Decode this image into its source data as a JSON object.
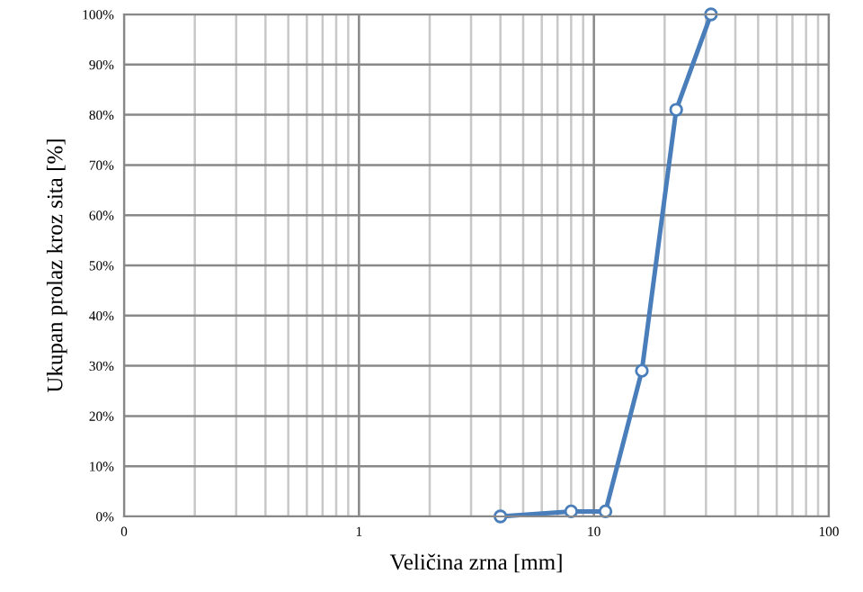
{
  "chart_data": {
    "type": "line",
    "xlabel": "Veličina zrna [mm]",
    "ylabel": "Ukupan prolaz kroz sita [%]",
    "x": [
      4,
      8,
      11.2,
      16,
      22.4,
      31.5
    ],
    "series": [
      {
        "color": "#4a7ebb",
        "values": [
          0,
          1,
          1,
          29,
          81,
          100
        ]
      }
    ],
    "log": "x",
    "xlim": [
      0.1,
      100
    ],
    "xticks": [
      {
        "value": 0.1,
        "label": "0"
      },
      1,
      10,
      100
    ],
    "ylim": [
      0,
      100
    ],
    "yticks": [
      {
        "value": 0,
        "label": "0%"
      },
      {
        "value": 10,
        "label": "10%"
      },
      {
        "value": 20,
        "label": "20%"
      },
      {
        "value": 30,
        "label": "30%"
      },
      {
        "value": 40,
        "label": "40%"
      },
      {
        "value": 50,
        "label": "50%"
      },
      {
        "value": 60,
        "label": "60%"
      },
      {
        "value": 70,
        "label": "70%"
      },
      {
        "value": 80,
        "label": "80%"
      },
      {
        "value": 90,
        "label": "90%"
      },
      {
        "value": 100,
        "label": "100%"
      }
    ],
    "grid": true,
    "marker": "circle",
    "line_style": "solid",
    "legend": false
  }
}
